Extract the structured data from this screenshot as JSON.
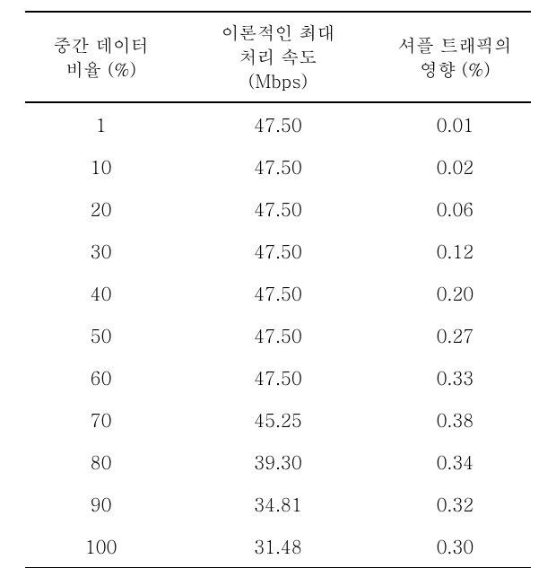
{
  "table": {
    "columns": [
      {
        "line1": "중간 데이터",
        "line2": "비율 (%)"
      },
      {
        "line1": "이론적인 최대",
        "line2": "처리 속도",
        "line3": "(Mbps)"
      },
      {
        "line1": "셔플 트래픽의",
        "line2": "영향 (%)"
      }
    ],
    "rows": [
      [
        "1",
        "47.50",
        "0.01"
      ],
      [
        "10",
        "47.50",
        "0.02"
      ],
      [
        "20",
        "47.50",
        "0.06"
      ],
      [
        "30",
        "47.50",
        "0.12"
      ],
      [
        "40",
        "47.50",
        "0.20"
      ],
      [
        "50",
        "47.50",
        "0.27"
      ],
      [
        "60",
        "47.50",
        "0.33"
      ],
      [
        "70",
        "45.25",
        "0.38"
      ],
      [
        "80",
        "39.30",
        "0.34"
      ],
      [
        "90",
        "34.81",
        "0.32"
      ],
      [
        "100",
        "31.48",
        "0.30"
      ]
    ],
    "style": {
      "font_family": "Batang",
      "font_size": 20,
      "text_color": "#000000",
      "background_color": "#ffffff",
      "header_border_top": "double",
      "header_border_bottom": "double",
      "body_border_bottom": "solid"
    }
  }
}
